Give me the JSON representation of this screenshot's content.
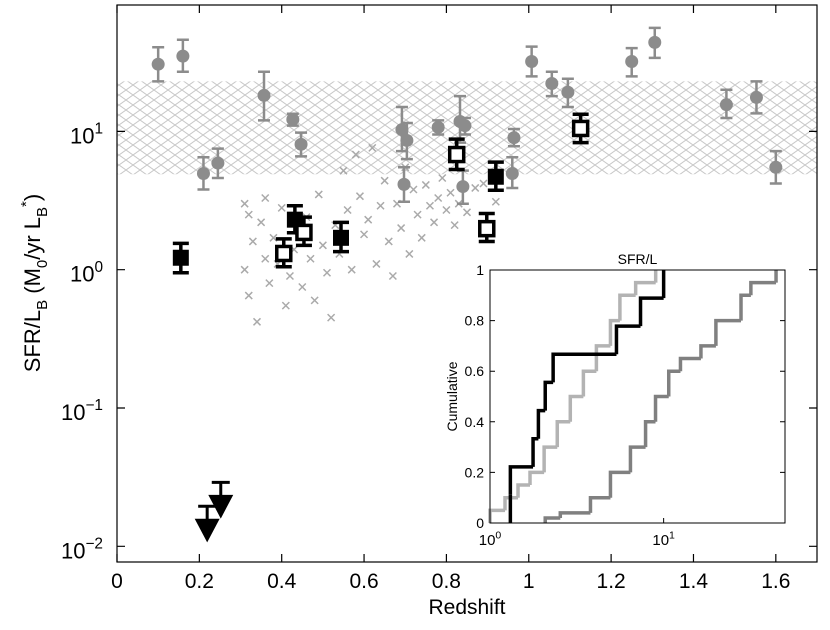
{
  "chart_data": [
    {
      "type": "scatter",
      "xlabel": "Redshift",
      "ylabel": [
        {
          "text": "SFR/L"
        },
        {
          "text": "B",
          "sub": true
        },
        {
          "text": "  (M"
        },
        {
          "text": "0",
          "sub": true
        },
        {
          "text": "/yr L"
        },
        {
          "text": "B",
          "sub": true
        },
        {
          "text": "*",
          "sup": true
        },
        {
          "text": ")"
        }
      ],
      "xlim": [
        0,
        1.7
      ],
      "ylim": [
        0.0077,
        82
      ],
      "yscale": "log",
      "xticks": [
        0,
        0.2,
        0.4,
        0.6,
        0.8,
        1,
        1.2,
        1.4,
        1.6
      ],
      "yticks": [
        {
          "value": 0.01,
          "label": "10",
          "exponent": "−2"
        },
        {
          "value": 0.1,
          "label": "10",
          "exponent": "−1"
        },
        {
          "value": 1,
          "label": "10",
          "exponent": "0"
        },
        {
          "value": 10,
          "label": "10",
          "exponent": "1"
        }
      ],
      "band": {
        "ylow": 4.9,
        "yhigh": 23,
        "color": "#c8c8c8"
      },
      "series": [
        {
          "marker": "x",
          "color": "#aaaaaa",
          "x": [
            0.31,
            0.31,
            0.32,
            0.32,
            0.33,
            0.34,
            0.35,
            0.36,
            0.36,
            0.37,
            0.38,
            0.39,
            0.4,
            0.41,
            0.42,
            0.43,
            0.44,
            0.45,
            0.46,
            0.47,
            0.48,
            0.49,
            0.5,
            0.51,
            0.52,
            0.53,
            0.54,
            0.55,
            0.56,
            0.57,
            0.58,
            0.59,
            0.6,
            0.61,
            0.62,
            0.63,
            0.64,
            0.65,
            0.66,
            0.67,
            0.68,
            0.69,
            0.7,
            0.71,
            0.72,
            0.73,
            0.74,
            0.75,
            0.76,
            0.77,
            0.78,
            0.79,
            0.8,
            0.81,
            0.82,
            0.83,
            0.85,
            0.87,
            0.89,
            0.92
          ],
          "values": [
            3.0,
            1.0,
            2.5,
            0.65,
            1.6,
            0.42,
            2.2,
            1.2,
            3.3,
            0.8,
            1.7,
            1.1,
            2.8,
            0.55,
            0.9,
            1.4,
            1.9,
            0.75,
            2.4,
            1.2,
            0.6,
            3.5,
            1.5,
            0.95,
            0.45,
            2.1,
            1.3,
            5.2,
            2.7,
            1.0,
            6.8,
            3.4,
            1.8,
            2.3,
            7.6,
            1.1,
            2.9,
            4.4,
            1.6,
            0.9,
            3.0,
            2.0,
            5.5,
            1.3,
            3.8,
            2.5,
            1.7,
            4.1,
            2.9,
            2.2,
            3.3,
            4.6,
            2.7,
            3.6,
            2.1,
            3.0,
            2.6,
            3.9,
            4.2,
            3.1
          ]
        },
        {
          "marker": "circle",
          "color": "#8c8c8c",
          "x": [
            0.1,
            0.16,
            0.21,
            0.245,
            0.357,
            0.427,
            0.447,
            0.692,
            0.697,
            0.704,
            0.78,
            0.833,
            0.845,
            0.84,
            0.96,
            0.964,
            1.007,
            1.056,
            1.095,
            1.25,
            1.306,
            1.48,
            1.553,
            1.6
          ],
          "values": [
            30.6,
            35,
            4.96,
            5.9,
            18.2,
            12.2,
            8.06,
            10.3,
            4.14,
            8.6,
            10.7,
            11.8,
            11,
            3.99,
            4.96,
            9.0,
            32,
            22.2,
            19.2,
            32,
            44,
            15.6,
            17.6,
            5.5
          ],
          "err_low": [
            23,
            27,
            3.8,
            4.6,
            12,
            11,
            6.6,
            7.2,
            3.1,
            6.3,
            9.5,
            8.3,
            9.5,
            3.0,
            3.9,
            7.8,
            25,
            18,
            15,
            25,
            34,
            12.5,
            13.5,
            4.2
          ],
          "err_high": [
            40.6,
            46,
            6.5,
            7.5,
            27,
            13.4,
            9.8,
            15,
            5.5,
            11.5,
            12,
            18,
            12.5,
            5.2,
            6.5,
            10.4,
            41,
            27,
            24,
            40,
            56,
            20,
            23,
            7.2
          ]
        },
        {
          "marker": "square",
          "color": "#000000",
          "x": [
            0.155,
            0.432,
            0.544,
            0.92
          ],
          "values": [
            1.22,
            2.3,
            1.7,
            4.7
          ],
          "err_low": [
            0.95,
            1.85,
            1.35,
            3.75
          ],
          "err_high": [
            1.55,
            2.9,
            2.2,
            6.0
          ]
        },
        {
          "marker": "open-square",
          "color": "#000000",
          "x": [
            0.405,
            0.454,
            0.825,
            0.898,
            1.126
          ],
          "values": [
            1.31,
            1.86,
            6.8,
            1.98,
            10.5
          ],
          "err_low": [
            1.05,
            1.5,
            5.3,
            1.6,
            8.3
          ],
          "err_high": [
            1.67,
            2.4,
            8.8,
            2.55,
            13.3
          ]
        },
        {
          "marker": "upper-limit",
          "color": "#000000",
          "x": [
            0.219,
            0.252
          ],
          "values": [
            0.0195,
            0.029
          ]
        }
      ]
    },
    {
      "type": "step",
      "title": "SFR/L",
      "ylabel": "Cumulative",
      "xlim": [
        1,
        50
      ],
      "xscale": "log",
      "ylim": [
        0,
        1
      ],
      "xticks": [
        {
          "value": 1,
          "label": "10",
          "exponent": "0"
        },
        {
          "value": 10,
          "label": "10",
          "exponent": "1"
        }
      ],
      "yticks": [
        0,
        0.2,
        0.4,
        0.6,
        0.8,
        1
      ],
      "series": [
        {
          "color": "#b3b3b3",
          "x": [
            1.0,
            1.22,
            1.45,
            1.7,
            2.05,
            2.44,
            2.9,
            3.45,
            4.1,
            4.94,
            5.6,
            6.9,
            9.0
          ],
          "values": [
            0.05,
            0.1,
            0.15,
            0.2,
            0.3,
            0.4,
            0.5,
            0.6,
            0.7,
            0.8,
            0.9,
            0.95,
            1
          ]
        },
        {
          "color": "#808080",
          "x": [
            2.08,
            2.54,
            3.79,
            4.94,
            6.44,
            7.87,
            8.98,
            10.7,
            12.5,
            16.4,
            20,
            27.9,
            31.8,
            44.4
          ],
          "values": [
            0.02,
            0.04,
            0.1,
            0.2,
            0.3,
            0.4,
            0.5,
            0.6,
            0.65,
            0.7,
            0.8,
            0.9,
            0.95,
            1
          ]
        },
        {
          "color": "#000000",
          "x": [
            1.31,
            1.31,
            1.77,
            1.9,
            2.08,
            2.31,
            5.35,
            7.36,
            10.0
          ],
          "values": [
            0.111,
            0.222,
            0.333,
            0.444,
            0.556,
            0.667,
            0.778,
            0.889,
            1
          ]
        }
      ]
    }
  ]
}
